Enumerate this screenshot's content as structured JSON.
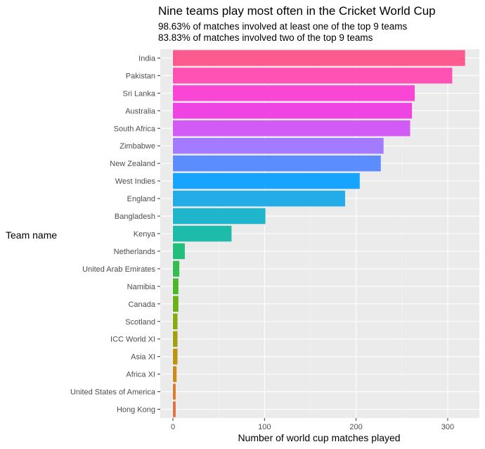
{
  "chart_data": {
    "type": "bar",
    "orientation": "horizontal",
    "title": "Nine teams play most often in the Cricket World Cup",
    "subtitle_lines": [
      "98.63% of matches involved at least one of the top 9 teams",
      "83.83% of matches involved two of the top 9 teams"
    ],
    "xlabel": "Number of world cup matches played",
    "ylabel": "Team name",
    "xlim": [
      0,
      330
    ],
    "xticks": [
      0,
      100,
      200,
      300
    ],
    "grid": true,
    "legend": "none",
    "categories": [
      "India",
      "Pakistan",
      "Sri Lanka",
      "Australia",
      "South Africa",
      "Zimbabwe",
      "New Zealand",
      "West Indies",
      "England",
      "Bangladesh",
      "Kenya",
      "Netherlands",
      "United Arab Emirates",
      "Namibia",
      "Canada",
      "Scotland",
      "ICC World XI",
      "Asia XI",
      "Africa XI",
      "United States of America",
      "Hong Kong"
    ],
    "values": [
      319,
      305,
      264,
      261,
      259,
      230,
      227,
      204,
      188,
      101,
      64,
      13,
      7,
      6,
      6,
      5,
      5,
      5,
      4,
      3,
      3
    ],
    "colors": [
      "#FF5A8F",
      "#FF52B4",
      "#F946D4",
      "#EE45E2",
      "#D35BF5",
      "#A47BFF",
      "#5C8DFF",
      "#17A4FF",
      "#23ACE8",
      "#1FB6CC",
      "#1DBBAA",
      "#22BE7E",
      "#33BD4C",
      "#4DB72B",
      "#6BB11A",
      "#87AA10",
      "#A39F10",
      "#BB9512",
      "#CC8A18",
      "#DB7B2A",
      "#E36F42"
    ]
  }
}
